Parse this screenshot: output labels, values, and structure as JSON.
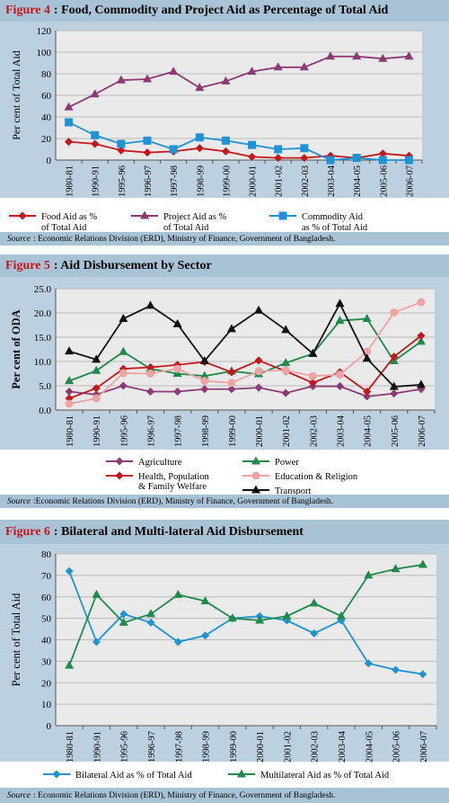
{
  "fig4": {
    "title_num": "Figure 4",
    "title_text": ": Food, Commodity and Project Aid as Percentage of Total Aid",
    "source_label": "Source",
    "source_text": ": Economic Relations Division (ERD), Ministry of Finance, Government of Bangladesh.",
    "chart_data": {
      "type": "line",
      "ylabel": "Per cent of Total Aid",
      "ylim": [
        0,
        120
      ],
      "yticks": [
        "0",
        "20",
        "40",
        "60",
        "80",
        "100",
        "120"
      ],
      "categories": [
        "1980-81",
        "1990-91",
        "1995-96",
        "1996-97",
        "1997-98",
        "1998-99",
        "1999-00",
        "2000-01",
        "2001-02",
        "2002-03",
        "2003-04",
        "2004-05",
        "2005-06",
        "2006-07"
      ],
      "series": [
        {
          "name": "Food Aid as %\nof Total Aid",
          "color": "#c4161c",
          "marker": "diamond",
          "values": [
            17,
            15,
            9,
            7,
            8,
            11,
            8,
            3,
            2,
            2,
            4,
            2,
            6,
            4
          ]
        },
        {
          "name": "Project Aid as %\nof Total Aid",
          "color": "#8b3a74",
          "marker": "triangle",
          "values": [
            49,
            61,
            74,
            75,
            82,
            67,
            73,
            82,
            86,
            86,
            96,
            96,
            94,
            96
          ]
        },
        {
          "name": "Commodity Aid\nas % of Total Aid",
          "color": "#1f93d3",
          "marker": "square",
          "values": [
            35,
            23,
            15,
            18,
            10,
            21,
            18,
            14,
            10,
            11,
            0,
            2,
            0,
            0
          ]
        }
      ]
    }
  },
  "fig5": {
    "title_num": "Figure 5",
    "title_text": ": Aid Disbursement by Sector",
    "source_label": "Source",
    "source_text": ":Economic Relations Division (ERD), Ministry of Finance, Government  of Bangladesh.",
    "chart_data": {
      "type": "line",
      "ylabel": "Per cent of ODA",
      "ylim": [
        0,
        25
      ],
      "yticks": [
        "0.0",
        "5.0",
        "10.0",
        "15.0",
        "20.0",
        "25.0"
      ],
      "categories": [
        "1980-81",
        "1990-91",
        "1995-96",
        "1996-97",
        "1997-98",
        "1998-99",
        "1999-00",
        "2000-01",
        "2001-02",
        "2002-03",
        "2003-04",
        "2004-05",
        "2005-06",
        "2006-07"
      ],
      "series": [
        {
          "name": "Agriculture",
          "color": "#8b3a74",
          "marker": "diamond",
          "values": [
            3.8,
            3.2,
            5.0,
            3.8,
            3.8,
            4.3,
            4.3,
            4.6,
            3.5,
            4.9,
            4.9,
            2.8,
            3.4,
            4.3
          ]
        },
        {
          "name": "Power",
          "color": "#1e8b4c",
          "marker": "triangle",
          "values": [
            6.0,
            8.1,
            12.0,
            8.5,
            7.5,
            7.0,
            8.0,
            7.4,
            9.7,
            11.6,
            18.4,
            18.8,
            10.1,
            14.1
          ]
        },
        {
          "name": "Health, Population\n& Family Welfare",
          "color": "#c4161c",
          "marker": "diamond",
          "values": [
            2.4,
            4.5,
            8.5,
            8.8,
            9.3,
            9.9,
            7.8,
            10.2,
            8.0,
            5.6,
            7.8,
            3.8,
            11.0,
            15.3
          ]
        },
        {
          "name": "Education & Religion",
          "color": "#f0a3a3",
          "marker": "circle",
          "values": [
            1.3,
            2.4,
            7.6,
            7.5,
            8.5,
            6.0,
            5.6,
            8.0,
            8.2,
            7.0,
            7.3,
            12.0,
            20.1,
            22.2
          ]
        },
        {
          "name": "Transport",
          "color": "#111111",
          "marker": "triangle",
          "values": [
            12.1,
            10.4,
            18.8,
            21.5,
            17.7,
            10.1,
            16.7,
            20.5,
            16.5,
            11.6,
            21.9,
            10.6,
            4.8,
            5.2
          ]
        }
      ]
    }
  },
  "fig6": {
    "title_num": "Figure 6",
    "title_text": ": Bilateral and Multi-lateral Aid Disbursement",
    "source_label": "Source",
    "source_text": ":  Economic Relations Division (ERD), Ministry of Finance, Government of Bangladesh.",
    "chart_data": {
      "type": "line",
      "ylabel": "Per cent of Total Aid",
      "ylim": [
        0,
        80
      ],
      "yticks": [
        "0",
        "10",
        "20",
        "30",
        "40",
        "50",
        "60",
        "70",
        "80"
      ],
      "categories": [
        "1980-81",
        "1990-91",
        "1995-96",
        "1996-97",
        "1997-98",
        "1998-99",
        "1999-00",
        "2000-01",
        "2001-02",
        "2002-03",
        "2003-04",
        "2004-05",
        "2005-06",
        "2006-07"
      ],
      "series": [
        {
          "name": "Bilateral Aid as % of Total Aid",
          "color": "#1f93d3",
          "marker": "diamond",
          "values": [
            72,
            39,
            52,
            48,
            39,
            42,
            50,
            51,
            49,
            43,
            49,
            29,
            26,
            24
          ]
        },
        {
          "name": "Multilateral Aid as % of Total Aid",
          "color": "#1e8b4c",
          "marker": "triangle",
          "values": [
            28,
            61,
            48,
            52,
            61,
            58,
            50,
            49,
            51,
            57,
            51,
            70,
            73,
            75
          ]
        }
      ]
    }
  }
}
